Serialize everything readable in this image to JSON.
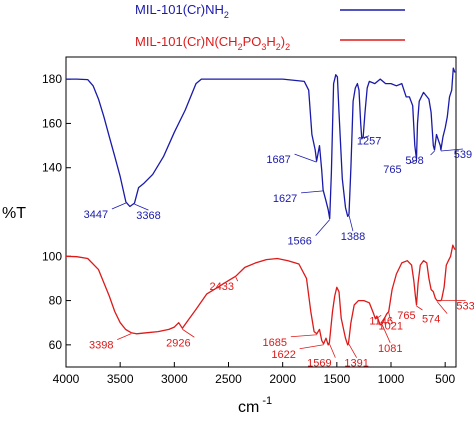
{
  "chart_data": {
    "type": "line",
    "title": "",
    "xlabel": "cm",
    "xlabel_superscript": "-1",
    "ylabel": "%T",
    "xlim": [
      4000,
      400
    ],
    "x_reversed": true,
    "xticks": [
      4000,
      3500,
      3000,
      2500,
      2000,
      1500,
      1000,
      500
    ],
    "ylim": [
      50,
      190
    ],
    "yticks": [
      60,
      80,
      100,
      140,
      160,
      180
    ],
    "grid": false,
    "legend_position": "top-right",
    "series": [
      {
        "name": "MIL-101(Cr)NH",
        "name_sub": "2",
        "color": "#1a1aaa",
        "points": [
          [
            4000,
            180
          ],
          [
            3900,
            180
          ],
          [
            3800,
            179.8
          ],
          [
            3750,
            177
          ],
          [
            3700,
            171
          ],
          [
            3650,
            163
          ],
          [
            3600,
            154
          ],
          [
            3550,
            145
          ],
          [
            3500,
            136
          ],
          [
            3447,
            124.5
          ],
          [
            3410,
            122.5
          ],
          [
            3368,
            124
          ],
          [
            3330,
            131
          ],
          [
            3280,
            133
          ],
          [
            3200,
            137
          ],
          [
            3100,
            145
          ],
          [
            3000,
            156
          ],
          [
            2900,
            166
          ],
          [
            2800,
            178
          ],
          [
            2750,
            180
          ],
          [
            2500,
            180
          ],
          [
            2200,
            180
          ],
          [
            2000,
            180
          ],
          [
            1800,
            179
          ],
          [
            1760,
            175
          ],
          [
            1730,
            155
          ],
          [
            1700,
            148
          ],
          [
            1687,
            143
          ],
          [
            1660,
            150
          ],
          [
            1640,
            139
          ],
          [
            1627,
            130
          ],
          [
            1600,
            125
          ],
          [
            1580,
            121
          ],
          [
            1566,
            117
          ],
          [
            1550,
            138
          ],
          [
            1530,
            178
          ],
          [
            1510,
            182
          ],
          [
            1495,
            181
          ],
          [
            1480,
            165
          ],
          [
            1450,
            135
          ],
          [
            1420,
            122
          ],
          [
            1400,
            118
          ],
          [
            1388,
            119
          ],
          [
            1370,
            140
          ],
          [
            1350,
            170
          ],
          [
            1330,
            176
          ],
          [
            1310,
            178
          ],
          [
            1295,
            175
          ],
          [
            1280,
            160
          ],
          [
            1270,
            153
          ],
          [
            1257,
            154
          ],
          [
            1240,
            165
          ],
          [
            1220,
            176
          ],
          [
            1200,
            179
          ],
          [
            1150,
            178
          ],
          [
            1100,
            180
          ],
          [
            1050,
            178
          ],
          [
            1000,
            178
          ],
          [
            950,
            177
          ],
          [
            900,
            178
          ],
          [
            860,
            172
          ],
          [
            830,
            172
          ],
          [
            800,
            168
          ],
          [
            780,
            150
          ],
          [
            770,
            146
          ],
          [
            765,
            144
          ],
          [
            755,
            160
          ],
          [
            740,
            170
          ],
          [
            700,
            174
          ],
          [
            650,
            171
          ],
          [
            630,
            165
          ],
          [
            610,
            150
          ],
          [
            598,
            148
          ],
          [
            580,
            155
          ],
          [
            560,
            152
          ],
          [
            545,
            150
          ],
          [
            539,
            148
          ],
          [
            520,
            154
          ],
          [
            500,
            158
          ],
          [
            480,
            163
          ],
          [
            460,
            172
          ],
          [
            440,
            175
          ],
          [
            425,
            185
          ],
          [
            410,
            183
          ]
        ]
      },
      {
        "name": "MIL-101(Cr)N(CH",
        "name_sub": "2",
        "name_mid": "PO",
        "name_sub2": "3",
        "name_mid2": "H",
        "name_sub3": "2",
        "name_end": ")",
        "name_sub4": "2",
        "color": "#dd1a1a",
        "points": [
          [
            4000,
            100
          ],
          [
            3900,
            99.8
          ],
          [
            3800,
            99
          ],
          [
            3700,
            94
          ],
          [
            3650,
            88
          ],
          [
            3600,
            82
          ],
          [
            3550,
            75
          ],
          [
            3500,
            70
          ],
          [
            3450,
            67
          ],
          [
            3398,
            65.5
          ],
          [
            3350,
            65
          ],
          [
            3250,
            65.5
          ],
          [
            3150,
            66
          ],
          [
            3050,
            67
          ],
          [
            3000,
            68
          ],
          [
            2960,
            70
          ],
          [
            2926,
            67.5
          ],
          [
            2890,
            70
          ],
          [
            2800,
            76
          ],
          [
            2700,
            83
          ],
          [
            2600,
            86
          ],
          [
            2500,
            89
          ],
          [
            2433,
            91
          ],
          [
            2350,
            95
          ],
          [
            2250,
            97
          ],
          [
            2150,
            98.5
          ],
          [
            2050,
            99
          ],
          [
            1950,
            98
          ],
          [
            1850,
            96.5
          ],
          [
            1780,
            90
          ],
          [
            1740,
            75
          ],
          [
            1710,
            66
          ],
          [
            1685,
            65
          ],
          [
            1660,
            67
          ],
          [
            1640,
            62
          ],
          [
            1622,
            60.5
          ],
          [
            1600,
            63
          ],
          [
            1580,
            60
          ],
          [
            1569,
            61
          ],
          [
            1540,
            75
          ],
          [
            1520,
            82
          ],
          [
            1500,
            86
          ],
          [
            1480,
            84
          ],
          [
            1460,
            72
          ],
          [
            1420,
            63
          ],
          [
            1400,
            60
          ],
          [
            1391,
            61
          ],
          [
            1370,
            70
          ],
          [
            1340,
            78
          ],
          [
            1300,
            80
          ],
          [
            1250,
            80
          ],
          [
            1200,
            79
          ],
          [
            1160,
            74
          ],
          [
            1146,
            72
          ],
          [
            1130,
            73
          ],
          [
            1100,
            69
          ],
          [
            1081,
            69.5
          ],
          [
            1060,
            72
          ],
          [
            1040,
            74
          ],
          [
            1021,
            75
          ],
          [
            990,
            85
          ],
          [
            950,
            92
          ],
          [
            900,
            97
          ],
          [
            850,
            98
          ],
          [
            810,
            96
          ],
          [
            790,
            89
          ],
          [
            775,
            82
          ],
          [
            765,
            78
          ],
          [
            750,
            88
          ],
          [
            730,
            96
          ],
          [
            700,
            98
          ],
          [
            670,
            97
          ],
          [
            650,
            90
          ],
          [
            630,
            85
          ],
          [
            610,
            84
          ],
          [
            590,
            81
          ],
          [
            574,
            80
          ],
          [
            560,
            80
          ],
          [
            540,
            80
          ],
          [
            533,
            80.5
          ],
          [
            510,
            86
          ],
          [
            490,
            96
          ],
          [
            470,
            98
          ],
          [
            450,
            100
          ],
          [
            430,
            105
          ],
          [
            410,
            103
          ]
        ]
      }
    ],
    "annotations": [
      {
        "series": 0,
        "text": "3447",
        "x": 3447,
        "y": 124.5
      },
      {
        "series": 0,
        "text": "3368",
        "x": 3368,
        "y": 124
      },
      {
        "series": 0,
        "text": "1687",
        "x": 1687,
        "y": 143
      },
      {
        "series": 0,
        "text": "1627",
        "x": 1627,
        "y": 130
      },
      {
        "series": 0,
        "text": "1566",
        "x": 1566,
        "y": 117
      },
      {
        "series": 0,
        "text": "1388",
        "x": 1388,
        "y": 119
      },
      {
        "series": 0,
        "text": "1257",
        "x": 1257,
        "y": 154
      },
      {
        "series": 0,
        "text": "765",
        "x": 765,
        "y": 144
      },
      {
        "series": 0,
        "text": "598",
        "x": 598,
        "y": 148
      },
      {
        "series": 0,
        "text": "539",
        "x": 539,
        "y": 148
      },
      {
        "series": 1,
        "text": "3398",
        "x": 3398,
        "y": 65.5
      },
      {
        "series": 1,
        "text": "2926",
        "x": 2926,
        "y": 67.5
      },
      {
        "series": 1,
        "text": "2433",
        "x": 2433,
        "y": 91
      },
      {
        "series": 1,
        "text": "1685",
        "x": 1685,
        "y": 65
      },
      {
        "series": 1,
        "text": "1622",
        "x": 1622,
        "y": 60.5
      },
      {
        "series": 1,
        "text": "1569",
        "x": 1569,
        "y": 61
      },
      {
        "series": 1,
        "text": "1391",
        "x": 1391,
        "y": 61
      },
      {
        "series": 1,
        "text": "1146",
        "x": 1146,
        "y": 72
      },
      {
        "series": 1,
        "text": "1081",
        "x": 1081,
        "y": 69.5
      },
      {
        "series": 1,
        "text": "1021",
        "x": 1021,
        "y": 75
      },
      {
        "series": 1,
        "text": "765",
        "x": 765,
        "y": 78
      },
      {
        "series": 1,
        "text": "574",
        "x": 574,
        "y": 80
      },
      {
        "series": 1,
        "text": "533",
        "x": 533,
        "y": 80.5
      }
    ]
  }
}
